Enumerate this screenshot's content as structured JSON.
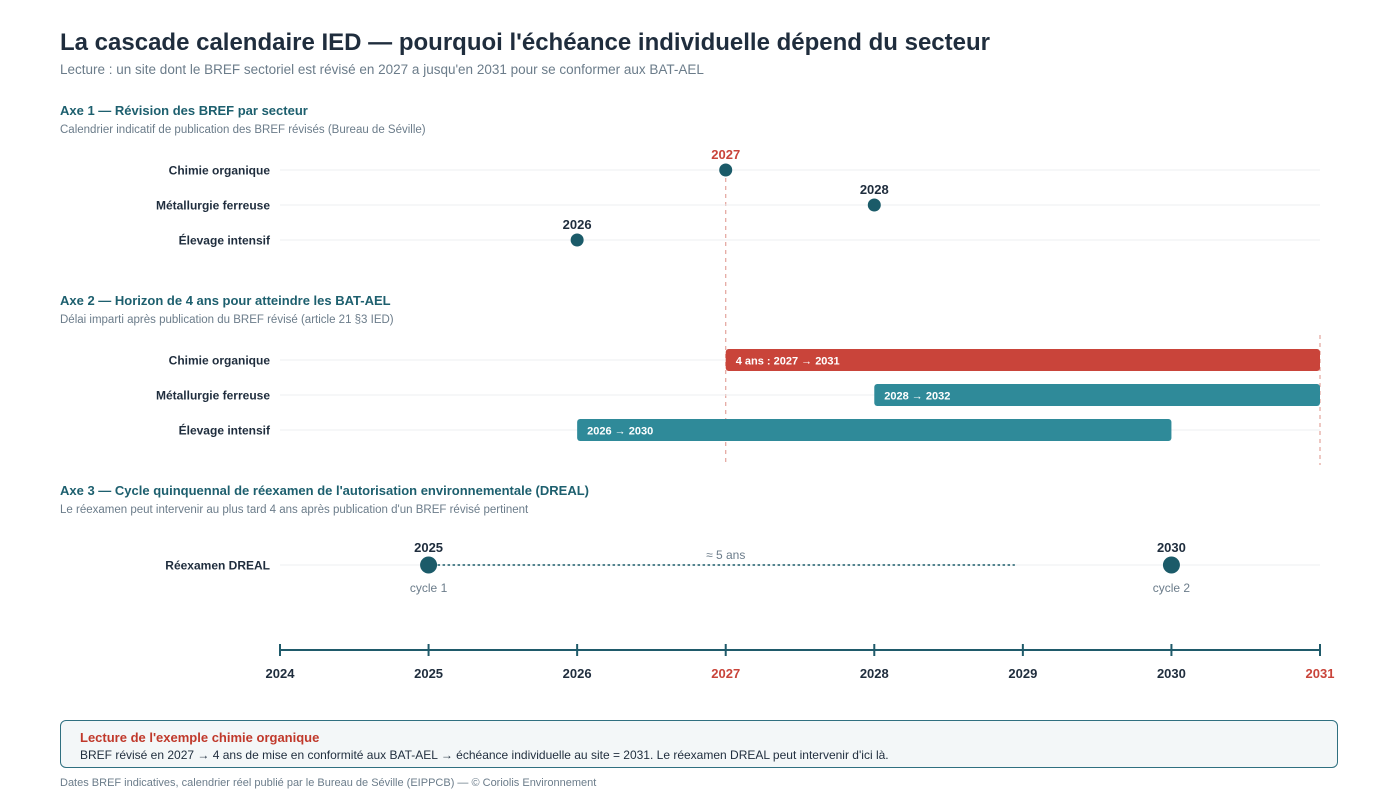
{
  "title": "La cascade calendaire IED — pourquoi l'échéance individuelle dépend du secteur",
  "subtitle": "Lecture : un site dont le BREF sectoriel est révisé en 2027 a jusqu'en 2031 pour se conformer aux BAT-AEL",
  "colors": {
    "title": "#1f2d3d",
    "section_title": "#1d5f6e",
    "point": "#1b5b69",
    "bar": "#2f8a99",
    "highlight": "#c9443a",
    "muted": "#6b7c8a",
    "grid": "#eceff1",
    "axis": "#1f5a6a"
  },
  "chart_data": [
    {
      "type": "scatter",
      "section_title": "Axe 1 — Révision des BREF par secteur",
      "section_subtitle": "Calendrier indicatif de publication des BREF révisés (Bureau de Séville)",
      "categories": [
        "Chimie organique",
        "Métallurgie ferreuse",
        "Élevage intensif"
      ],
      "values": [
        2027,
        2028,
        2026
      ],
      "highlight_index": 0
    },
    {
      "type": "bar",
      "orientation": "horizontal-range",
      "section_title": "Axe 2 — Horizon de 4 ans pour atteindre les BAT-AEL",
      "section_subtitle": "Délai imparti après publication du BREF révisé (article 21 §3 IED)",
      "categories": [
        "Chimie organique",
        "Métallurgie ferreuse",
        "Élevage intensif"
      ],
      "ranges": [
        {
          "start": 2027,
          "end": 2031,
          "label": "4 ans : 2027 → 2031",
          "highlight": true
        },
        {
          "start": 2028,
          "end": 2032,
          "label": "2028 → 2032",
          "highlight": false
        },
        {
          "start": 2026,
          "end": 2030,
          "label": "2026 → 2030",
          "highlight": false
        }
      ]
    },
    {
      "type": "scatter",
      "section_title": "Axe 3 — Cycle quinquennal de réexamen de l'autorisation environnementale (DREAL)",
      "section_subtitle": "Le réexamen peut intervenir au plus tard 4 ans après publication d'un BREF révisé pertinent",
      "category": "Réexamen DREAL",
      "points": [
        {
          "x": 2025,
          "label": "2025",
          "caption": "cycle 1"
        },
        {
          "x": 2030,
          "label": "2030",
          "caption": "cycle 2"
        }
      ],
      "interval_label": "≈ 5 ans",
      "interval_end": 2029
    }
  ],
  "x_axis": {
    "range": [
      2024,
      2031
    ],
    "ticks": [
      2024,
      2025,
      2026,
      2027,
      2028,
      2029,
      2030,
      2031
    ],
    "highlight_ticks": [
      2027,
      2031
    ],
    "reference_lines": [
      2027,
      2031
    ]
  },
  "note": {
    "title": "Lecture de l'exemple chimie organique",
    "text": "BREF révisé en 2027 → 4 ans de mise en conformité aux BAT-AEL → échéance individuelle au site = 2031. Le réexamen DREAL peut intervenir d'ici là."
  },
  "footer": "Dates BREF indicatives, calendrier réel publié par le Bureau de Séville (EIPPCB) — © Coriolis Environnement"
}
